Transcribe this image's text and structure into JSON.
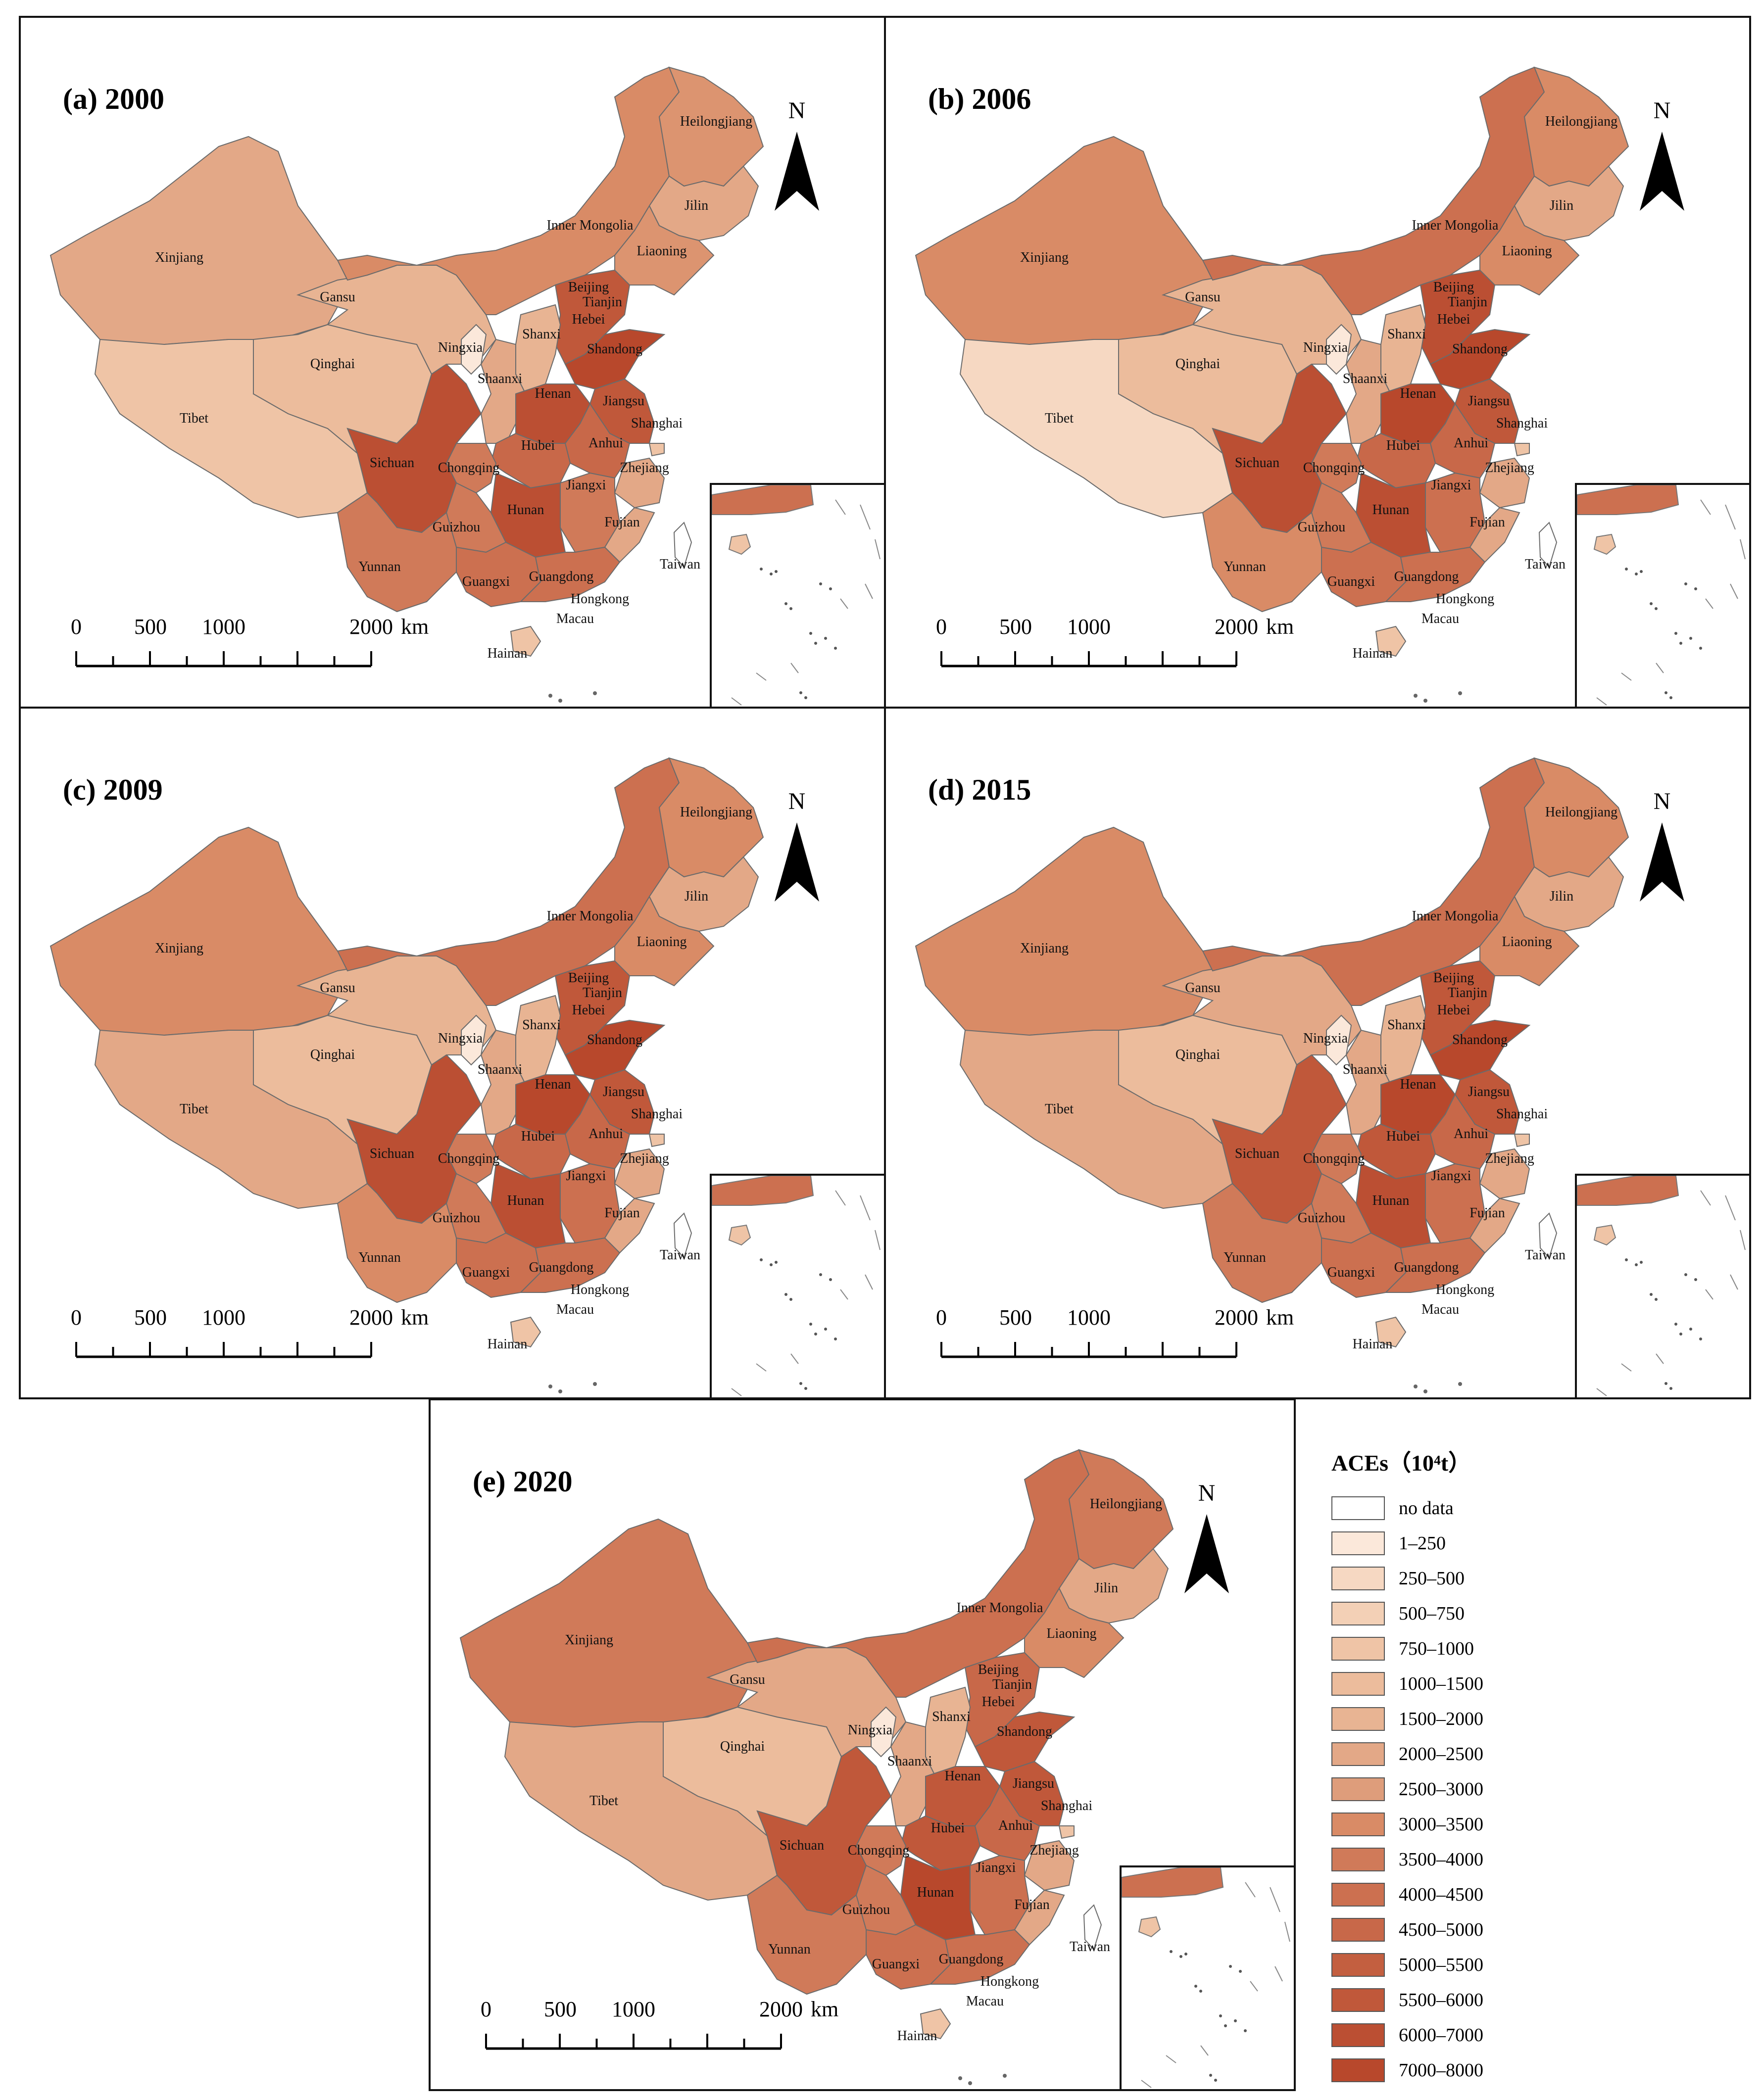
{
  "panels": [
    {
      "id": "a",
      "title": "(a) 2000",
      "colors": {
        "Xinjiang": "#e3a887",
        "Tibet": "#efc4a6",
        "Qinghai": "#ecbc9c",
        "Gansu": "#e8b493",
        "InnerMongolia": "#d98b66",
        "Heilongjiang": "#dc9470",
        "Jilin": "#e3a887",
        "Liaoning": "#dc9470",
        "Hebei": "#c0583a",
        "Shandong": "#b8482c",
        "Henan": "#bb4f33",
        "Jiangsu": "#c0583a",
        "Anhui": "#c86849",
        "Hubei": "#c86849",
        "Hunan": "#bb4f33",
        "Sichuan": "#bb4f33",
        "Chongqing": "#d07a59",
        "Guizhou": "#d07a59",
        "Yunnan": "#d07a59",
        "Guangxi": "#cc7050",
        "Guangdong": "#cc7050",
        "Jiangxi": "#d07a59",
        "Fujian": "#e3a887",
        "Zhejiang": "#e3a887",
        "Shaanxi": "#e3a887",
        "Shanxi": "#e8b493",
        "Ningxia": "#fbe8da",
        "Hainan": "#efc4a6",
        "Taiwan": "#ffffff",
        "Beijing": "#efc4a6",
        "Tianjin": "#efc4a6",
        "Shanghai": "#efc4a6"
      }
    },
    {
      "id": "b",
      "title": "(b) 2006",
      "colors": {
        "Xinjiang": "#d98b66",
        "Tibet": "#f6d8c2",
        "Qinghai": "#ecbc9c",
        "Gansu": "#e8b493",
        "InnerMongolia": "#cc7050",
        "Heilongjiang": "#d98b66",
        "Jilin": "#e3a887",
        "Liaoning": "#d98b66",
        "Hebei": "#bb4f33",
        "Shandong": "#b8482c",
        "Henan": "#b8482c",
        "Jiangsu": "#c0583a",
        "Anhui": "#c86849",
        "Hubei": "#c86849",
        "Hunan": "#bb4f33",
        "Sichuan": "#bb4f33",
        "Chongqing": "#d07a59",
        "Guizhou": "#d07a59",
        "Yunnan": "#d98b66",
        "Guangxi": "#cc7050",
        "Guangdong": "#cc7050",
        "Jiangxi": "#cc7050",
        "Fujian": "#e3a887",
        "Zhejiang": "#e3a887",
        "Shaanxi": "#e3a887",
        "Shanxi": "#e8b493",
        "Ningxia": "#fbe8da",
        "Hainan": "#efc4a6",
        "Taiwan": "#ffffff",
        "Beijing": "#efc4a6",
        "Tianjin": "#efc4a6",
        "Shanghai": "#efc4a6"
      }
    },
    {
      "id": "c",
      "title": "(c) 2009",
      "colors": {
        "Xinjiang": "#d98b66",
        "Tibet": "#e3a887",
        "Qinghai": "#ecbc9c",
        "Gansu": "#e8b493",
        "InnerMongolia": "#cc7050",
        "Heilongjiang": "#d98b66",
        "Jilin": "#e3a887",
        "Liaoning": "#d98b66",
        "Hebei": "#c0583a",
        "Shandong": "#b8482c",
        "Henan": "#b8482c",
        "Jiangsu": "#c0583a",
        "Anhui": "#c86849",
        "Hubei": "#c86849",
        "Hunan": "#bb4f33",
        "Sichuan": "#bb4f33",
        "Chongqing": "#d07a59",
        "Guizhou": "#d07a59",
        "Yunnan": "#d98b66",
        "Guangxi": "#cc7050",
        "Guangdong": "#cc7050",
        "Jiangxi": "#cc7050",
        "Fujian": "#e3a887",
        "Zhejiang": "#e3a887",
        "Shaanxi": "#e3a887",
        "Shanxi": "#e8b493",
        "Ningxia": "#fbe8da",
        "Hainan": "#efc4a6",
        "Taiwan": "#ffffff",
        "Beijing": "#efc4a6",
        "Tianjin": "#efc4a6",
        "Shanghai": "#efc4a6"
      }
    },
    {
      "id": "d",
      "title": "(d) 2015",
      "colors": {
        "Xinjiang": "#d98b66",
        "Tibet": "#e3a887",
        "Qinghai": "#ecbc9c",
        "Gansu": "#e3a887",
        "InnerMongolia": "#cc7050",
        "Heilongjiang": "#d98b66",
        "Jilin": "#e3a887",
        "Liaoning": "#d98b66",
        "Hebei": "#c0583a",
        "Shandong": "#b8482c",
        "Henan": "#b8482c",
        "Jiangsu": "#c0583a",
        "Anhui": "#c86849",
        "Hubei": "#c0583a",
        "Hunan": "#bb4f33",
        "Sichuan": "#c0583a",
        "Chongqing": "#d07a59",
        "Guizhou": "#d07a59",
        "Yunnan": "#d07a59",
        "Guangxi": "#cc7050",
        "Guangdong": "#cc7050",
        "Jiangxi": "#cc7050",
        "Fujian": "#e3a887",
        "Zhejiang": "#e3a887",
        "Shaanxi": "#e3a887",
        "Shanxi": "#e8b493",
        "Ningxia": "#fbe8da",
        "Hainan": "#efc4a6",
        "Taiwan": "#ffffff",
        "Beijing": "#efc4a6",
        "Tianjin": "#efc4a6",
        "Shanghai": "#efc4a6"
      }
    },
    {
      "id": "e",
      "title": "(e) 2020",
      "colors": {
        "Xinjiang": "#d07a59",
        "Tibet": "#e3a887",
        "Qinghai": "#ecbc9c",
        "Gansu": "#e3a887",
        "InnerMongolia": "#cc7050",
        "Heilongjiang": "#d07a59",
        "Jilin": "#e3a887",
        "Liaoning": "#d98b66",
        "Hebei": "#c86849",
        "Shandong": "#c0583a",
        "Henan": "#c0583a",
        "Jiangsu": "#c0583a",
        "Anhui": "#c86849",
        "Hubei": "#c0583a",
        "Hunan": "#b8482c",
        "Sichuan": "#c0583a",
        "Chongqing": "#d07a59",
        "Guizhou": "#d07a59",
        "Yunnan": "#d07a59",
        "Guangxi": "#cc7050",
        "Guangdong": "#cc7050",
        "Jiangxi": "#cc7050",
        "Fujian": "#e3a887",
        "Zhejiang": "#e3a887",
        "Shaanxi": "#e3a887",
        "Shanxi": "#e8b493",
        "Ningxia": "#fbe8da",
        "Hainan": "#efc4a6",
        "Taiwan": "#ffffff",
        "Beijing": "#efc4a6",
        "Tianjin": "#efc4a6",
        "Shanghai": "#efc4a6"
      }
    }
  ],
  "province_labels": [
    "Heilongjiang",
    "Jilin",
    "Liaoning",
    "Inner Mongolia",
    "Xinjiang",
    "Gansu",
    "Beijing",
    "Tianjin",
    "Hebei",
    "Shanxi",
    "Ningxia",
    "Qinghai",
    "Shandong",
    "Shaanxi",
    "Henan",
    "Jiangsu",
    "Tibet",
    "Anhui",
    "Shanghai",
    "Hubei",
    "Sichuan",
    "Chongqing",
    "Zhejiang",
    "Jiangxi",
    "Hunan",
    "Guizhou",
    "Fujian",
    "Taiwan",
    "Yunnan",
    "Guangdong",
    "Guangxi",
    "Hongkong",
    "Macau",
    "Hainan"
  ],
  "north_label": "N",
  "scale_bar": {
    "ticks": [
      "0",
      "500",
      "1000",
      "2000"
    ],
    "unit": "km"
  },
  "legend": {
    "title": "ACEs（10⁴t）",
    "items": [
      {
        "label": "no data",
        "color": "#ffffff"
      },
      {
        "label": "1–250",
        "color": "#fbe8da"
      },
      {
        "label": "250–500",
        "color": "#f6d8c2"
      },
      {
        "label": "500–750",
        "color": "#f3d0b6"
      },
      {
        "label": "750–1000",
        "color": "#efc4a6"
      },
      {
        "label": "1000–1500",
        "color": "#ecbc9c"
      },
      {
        "label": "1500–2000",
        "color": "#e8b493"
      },
      {
        "label": "2000–2500",
        "color": "#e3a887"
      },
      {
        "label": "2500–3000",
        "color": "#de9d7b"
      },
      {
        "label": "3000–3500",
        "color": "#d98b66"
      },
      {
        "label": "3500–4000",
        "color": "#d07a59"
      },
      {
        "label": "4000–4500",
        "color": "#cc7050"
      },
      {
        "label": "4500–5000",
        "color": "#c86849"
      },
      {
        "label": "5000–5500",
        "color": "#c35f40"
      },
      {
        "label": "5500–6000",
        "color": "#c0583a"
      },
      {
        "label": "6000–7000",
        "color": "#bb4f33"
      },
      {
        "label": "7000–8000",
        "color": "#b8482c"
      }
    ]
  }
}
